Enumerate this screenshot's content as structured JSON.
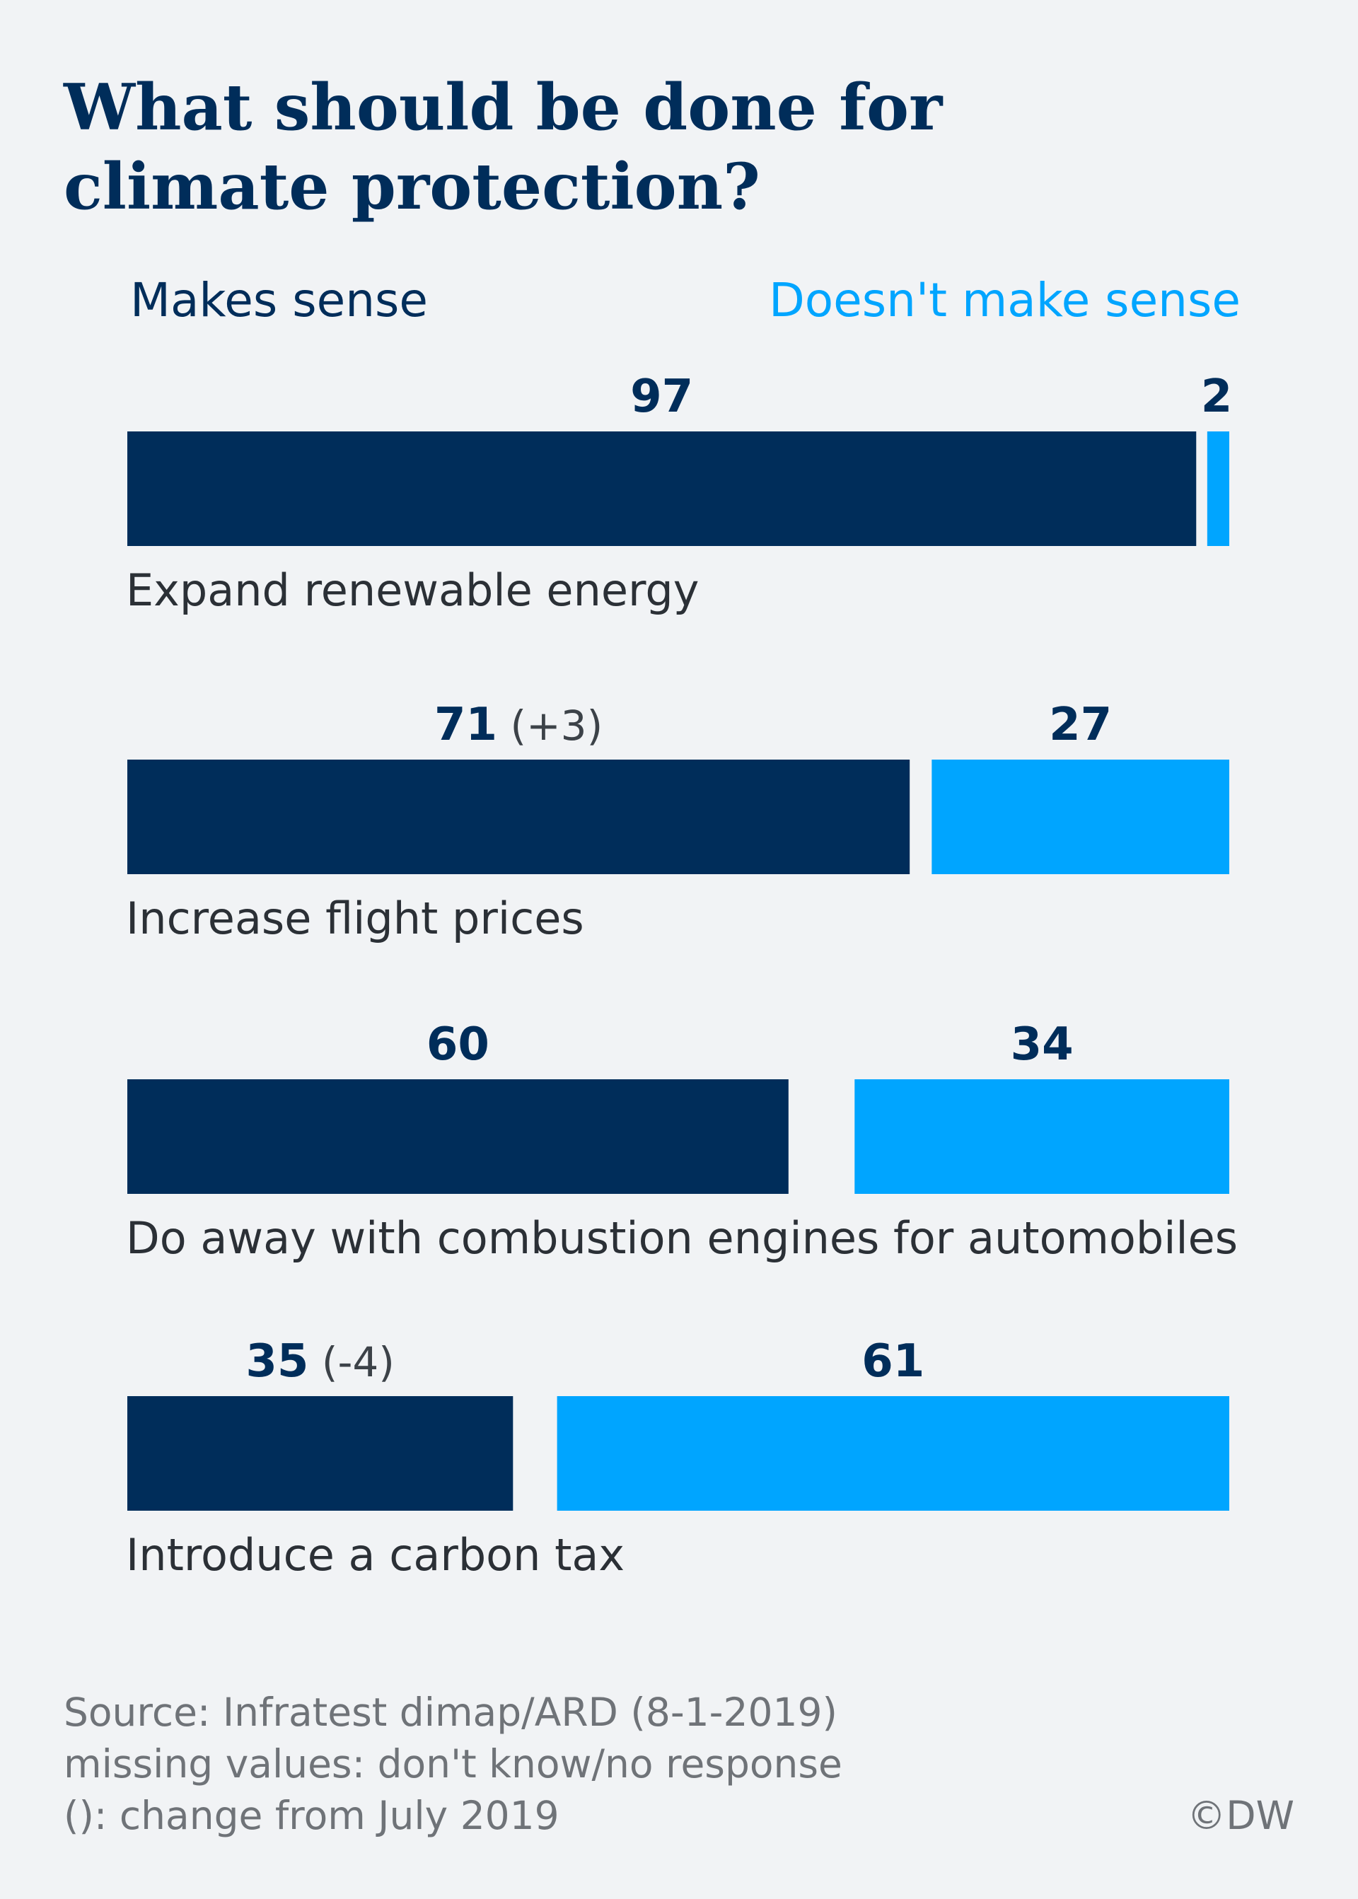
{
  "title_line1": "What should be done for",
  "title_line2": "climate protection?",
  "footer": {
    "source": "Source: Infratest dimap/ARD (8-1-2019)",
    "missing": "missing values: don't know/no response",
    "change_note": "(): change from July 2019",
    "copyright": "©DW"
  },
  "colors": {
    "makes_sense": "#002d5a",
    "doesnt_make_sense": "#00a5ff",
    "label": "#2b3036",
    "change": "#3c4248"
  },
  "chart_data": {
    "type": "bar",
    "orientation": "horizontal",
    "stacked": true,
    "categories": [
      "Expand renewable energy",
      "Increase flight prices",
      "Do away with combustion engines for automobiles",
      "Introduce a carbon tax"
    ],
    "series": [
      {
        "name": "Makes sense",
        "values": [
          97,
          71,
          60,
          35
        ]
      },
      {
        "name": "Doesn't make sense",
        "values": [
          2,
          27,
          34,
          61
        ]
      }
    ],
    "change_labels": [
      "",
      "(+3)",
      "",
      "(-4)"
    ],
    "xlim": [
      0,
      100
    ],
    "legend": "top",
    "grid": false
  }
}
